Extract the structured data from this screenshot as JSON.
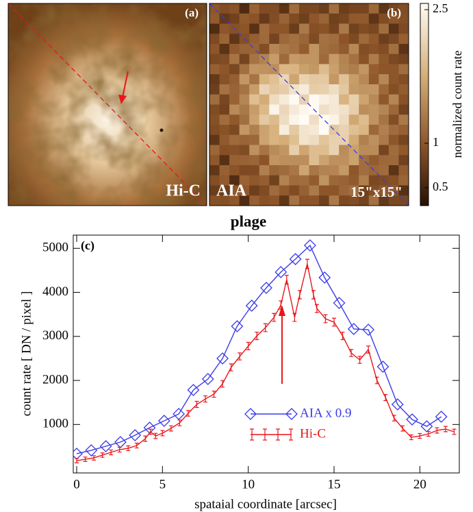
{
  "chart_data": [
    {
      "type": "image",
      "panels": [
        {
          "label": "(a)",
          "title": "Hi-C"
        },
        {
          "label": "(b)",
          "title": "AIA",
          "annotation": "15\"x15\""
        }
      ],
      "colorbar": {
        "label": "normalized count rate",
        "lim": [
          0.3,
          2.57
        ],
        "ticks": [
          0.5,
          1,
          2.5
        ]
      }
    },
    {
      "type": "line",
      "title": "plage",
      "panel_label": "(c)",
      "x_label": "spataial coordinate  [arcsec]",
      "y_label": "count rate  [ DN / pixel ]",
      "xlim": [
        -0.2,
        22.3
      ],
      "ylim": [
        -100,
        5300
      ],
      "xticks": [
        0,
        5,
        10,
        15,
        20
      ],
      "yticks": [
        1000,
        2000,
        3000,
        4000,
        5000
      ],
      "series": [
        {
          "name": "AIA x 0.9",
          "color": "#3a3ae8",
          "marker": "diamond",
          "x": [
            0,
            0.85,
            1.7,
            2.55,
            3.4,
            4.25,
            5.1,
            5.95,
            6.8,
            7.65,
            8.5,
            9.35,
            10.2,
            11.05,
            11.9,
            12.75,
            13.6,
            14.45,
            15.3,
            16.15,
            17.0,
            17.85,
            18.7,
            19.55,
            20.4,
            21.25
          ],
          "values": [
            336,
            413,
            507,
            600,
            756,
            927,
            1083,
            1239,
            1783,
            2032,
            2499,
            3230,
            3697,
            4102,
            4460,
            4755,
            5066,
            4335,
            3759,
            3168,
            3152,
            2312,
            1456,
            1114,
            958,
            1176
          ]
        },
        {
          "name": "Hi-C",
          "color": "#e8151a",
          "marker": "errorbar",
          "x": [
            0,
            0.5,
            1,
            1.5,
            2,
            2.5,
            3,
            3.5,
            4,
            4.3,
            4.6,
            5,
            5.5,
            6,
            6.5,
            7,
            7.5,
            8,
            8.5,
            9,
            9.5,
            10,
            10.5,
            11,
            11.5,
            11.9,
            12.24,
            12.7,
            13.0,
            13.44,
            13.8,
            14.0,
            14.5,
            15,
            15.5,
            16,
            16.5,
            17,
            17.5,
            18,
            18.5,
            19,
            19.5,
            20,
            20.5,
            21,
            21.5,
            22
          ],
          "values": [
            180,
            211,
            242,
            305,
            367,
            429,
            460,
            522,
            678,
            834,
            740,
            803,
            911,
            1036,
            1254,
            1456,
            1580,
            1689,
            1923,
            2296,
            2545,
            2779,
            3012,
            3199,
            3432,
            3712,
            4288,
            3432,
            3946,
            4646,
            3946,
            3634,
            3401,
            3323,
            3012,
            2623,
            2467,
            2701,
            2001,
            1612,
            1145,
            911,
            709,
            740,
            787,
            865,
            896,
            834
          ],
          "errors": [
            50,
            50,
            50,
            50,
            55,
            55,
            55,
            55,
            60,
            60,
            60,
            60,
            60,
            65,
            65,
            70,
            70,
            70,
            75,
            80,
            80,
            85,
            85,
            90,
            90,
            95,
            100,
            90,
            95,
            105,
            95,
            90,
            90,
            90,
            85,
            80,
            80,
            80,
            75,
            70,
            65,
            60,
            55,
            55,
            55,
            60,
            60,
            60
          ]
        }
      ]
    }
  ]
}
